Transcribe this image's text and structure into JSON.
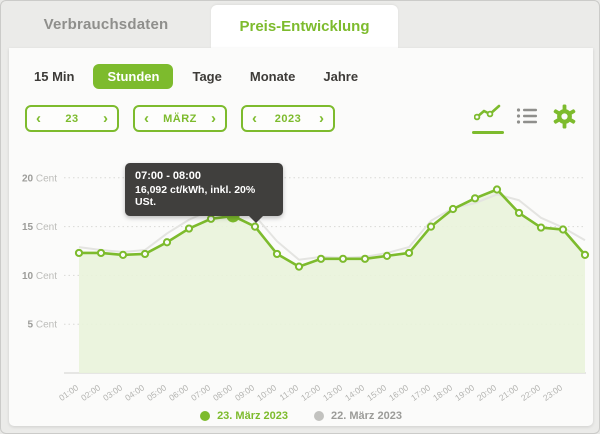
{
  "tabs": {
    "consumption": {
      "label": "Verbrauchsdaten",
      "active": false
    },
    "price": {
      "label": "Preis-Entwicklung",
      "active": true
    }
  },
  "filters": {
    "items": [
      {
        "label": "15 Min",
        "active": false
      },
      {
        "label": "Stunden",
        "active": true
      },
      {
        "label": "Tage",
        "active": false
      },
      {
        "label": "Monate",
        "active": false
      },
      {
        "label": "Jahre",
        "active": false
      }
    ]
  },
  "steppers": {
    "prev_glyph": "‹",
    "next_glyph": "›",
    "day": {
      "value": "23"
    },
    "month": {
      "value": "MÄRZ"
    },
    "year": {
      "value": "2023"
    }
  },
  "view_icons": [
    {
      "name": "line-chart-icon",
      "active": true
    },
    {
      "name": "list-icon",
      "active": false
    },
    {
      "name": "settings-gear-icon",
      "active": false
    }
  ],
  "tooltip": {
    "title": "07:00 - 08:00",
    "value": "16,092 ct/kWh, inkl. 20% USt."
  },
  "colors": {
    "accent_green": "#7dbb2d",
    "area_fill": "#e9f3da",
    "previous_day_line": "#e4e4e1",
    "tooltip_bg": "#403f3d",
    "grid": "#d9d9d6",
    "axis_text": "#9c9c99",
    "axis_unit_text": "#bcbcb9",
    "x_label_text": "#b3b3b0"
  },
  "legend": [
    {
      "label": "23. März 2023",
      "dot_color": "#7dbb2d",
      "text_color": "#7dbb2d"
    },
    {
      "label": "22. März 2023",
      "dot_color": "#c2c2bf",
      "text_color": "#9b9b98"
    }
  ],
  "chart_data": {
    "type": "line",
    "x": [
      "01:00",
      "02:00",
      "03:00",
      "04:00",
      "05:00",
      "06:00",
      "07:00",
      "08:00",
      "09:00",
      "10:00",
      "11:00",
      "12:00",
      "13:00",
      "14:00",
      "15:00",
      "16:00",
      "17:00",
      "18:00",
      "19:00",
      "20:00",
      "21:00",
      "22:00",
      "23:00",
      ""
    ],
    "series": [
      {
        "name": "22. März 2023",
        "color": "#e4e4e1",
        "kind": "line",
        "values": [
          12.9,
          12.6,
          12.4,
          12.6,
          14.3,
          15.7,
          16.7,
          17.1,
          16.1,
          13.5,
          11.6,
          11.9,
          11.8,
          11.9,
          12.3,
          12.9,
          15.6,
          16.9,
          17.4,
          18.3,
          17.7,
          15.9,
          14.9,
          13.6
        ]
      },
      {
        "name": "23. März 2023",
        "color": "#7dbb2d",
        "kind": "area-line",
        "fill": "#e9f3da",
        "values": [
          12.3,
          12.3,
          12.1,
          12.2,
          13.4,
          14.8,
          15.8,
          16.092,
          15.0,
          12.2,
          10.9,
          11.7,
          11.7,
          11.7,
          12.0,
          12.3,
          15.0,
          16.8,
          17.9,
          18.8,
          16.4,
          14.9,
          14.7,
          12.1
        ]
      }
    ],
    "hover_index": 7,
    "hover_series": "23. März 2023",
    "yticks": [
      5,
      10,
      15,
      20
    ],
    "y_unit": "Cent",
    "ylim": [
      0,
      22.4
    ],
    "grid": "horizontal-dotted",
    "legend_position": "bottom",
    "title": "",
    "xlabel": "",
    "ylabel": ""
  }
}
